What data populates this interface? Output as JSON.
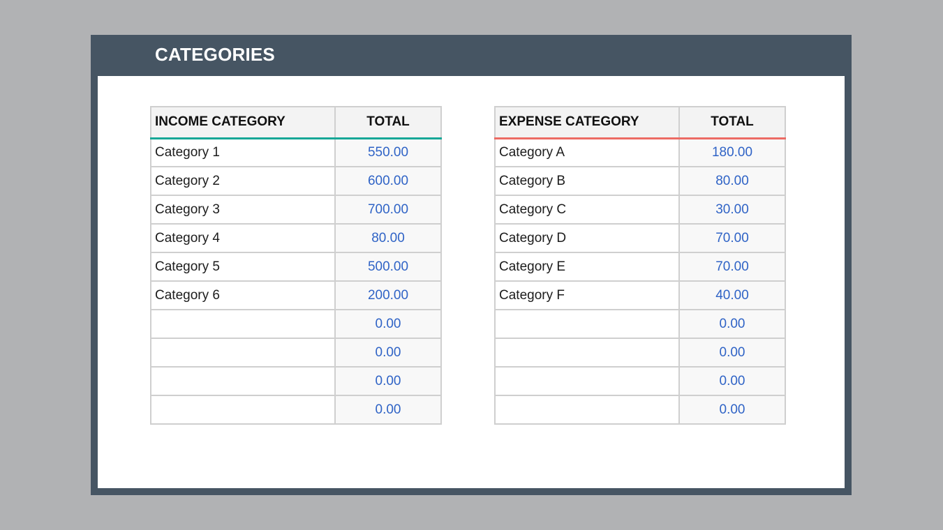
{
  "title": "CATEGORIES",
  "colors": {
    "background": "#b1b2b4",
    "frame": "#465563",
    "income_accent": "#17a797",
    "expense_accent": "#ec6b64",
    "value_text": "#2f63c6"
  },
  "income": {
    "name_header": "INCOME CATEGORY",
    "total_header": "TOTAL",
    "rows": [
      {
        "name": "Category 1",
        "total": "550.00"
      },
      {
        "name": "Category 2",
        "total": "600.00"
      },
      {
        "name": "Category 3",
        "total": "700.00"
      },
      {
        "name": "Category 4",
        "total": "80.00"
      },
      {
        "name": "Category 5",
        "total": "500.00"
      },
      {
        "name": "Category 6",
        "total": "200.00"
      },
      {
        "name": "",
        "total": "0.00"
      },
      {
        "name": "",
        "total": "0.00"
      },
      {
        "name": "",
        "total": "0.00"
      },
      {
        "name": "",
        "total": "0.00"
      }
    ]
  },
  "expense": {
    "name_header": "EXPENSE CATEGORY",
    "total_header": "TOTAL",
    "rows": [
      {
        "name": "Category A",
        "total": "180.00"
      },
      {
        "name": "Category B",
        "total": "80.00"
      },
      {
        "name": "Category C",
        "total": "30.00"
      },
      {
        "name": "Category D",
        "total": "70.00"
      },
      {
        "name": "Category E",
        "total": "70.00"
      },
      {
        "name": "Category F",
        "total": "40.00"
      },
      {
        "name": "",
        "total": "0.00"
      },
      {
        "name": "",
        "total": "0.00"
      },
      {
        "name": "",
        "total": "0.00"
      },
      {
        "name": "",
        "total": "0.00"
      }
    ]
  }
}
